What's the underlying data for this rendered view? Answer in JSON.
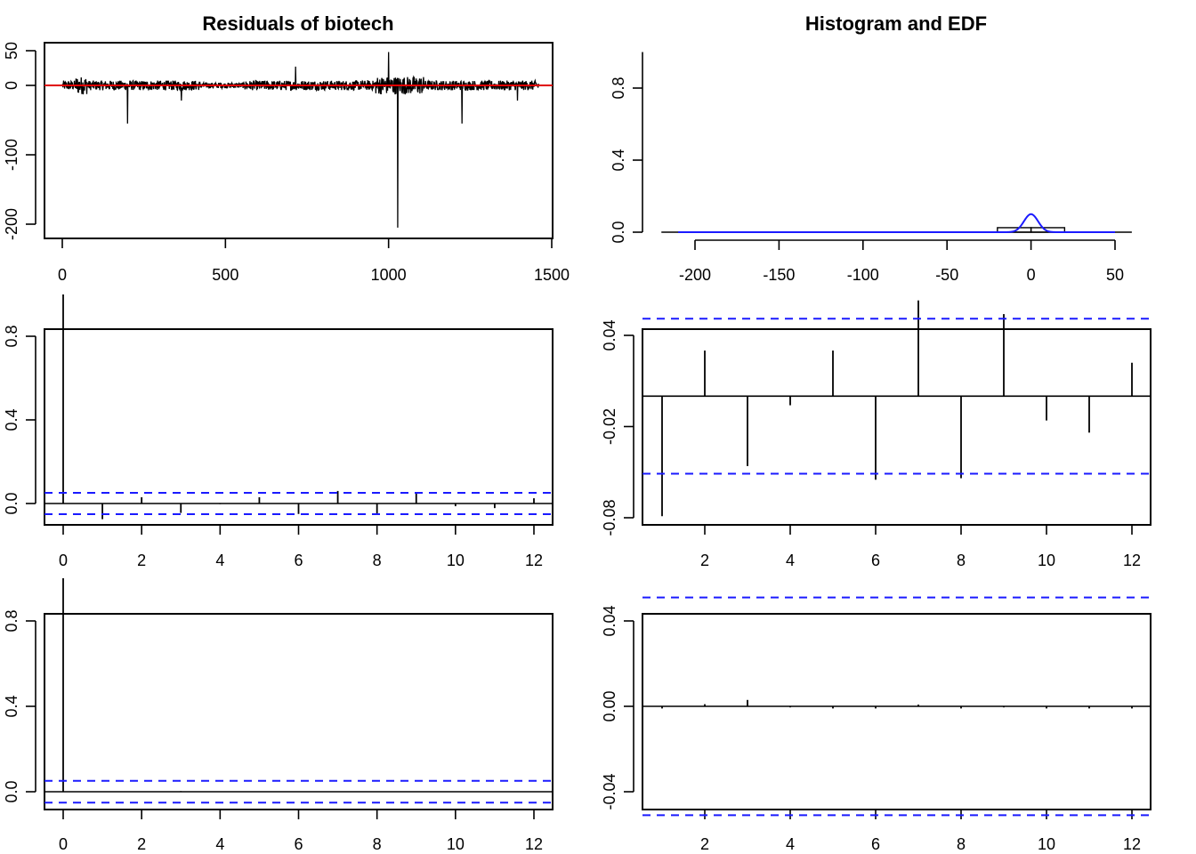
{
  "colors": {
    "axis": "#000000",
    "residual_line": "#000000",
    "zero_line": "#e00000",
    "confidence_band": "#1a1aff",
    "density": "#1a1aff"
  },
  "chart_data": [
    {
      "id": "residuals",
      "type": "line",
      "title": "Residuals of biotech",
      "xlim": [
        0,
        1500
      ],
      "ylim": [
        -200,
        50
      ],
      "xticks": [
        0,
        500,
        1000,
        1500
      ],
      "yticks": [
        -200,
        -100,
        0,
        50
      ],
      "n": 1460,
      "zero_line": 0,
      "spikes": [
        {
          "x": 200,
          "y": -55
        },
        {
          "x": 365,
          "y": -22
        },
        {
          "x": 715,
          "y": 27
        },
        {
          "x": 1000,
          "y": 48
        },
        {
          "x": 1028,
          "y": -205
        },
        {
          "x": 1225,
          "y": -55
        },
        {
          "x": 1395,
          "y": -22
        }
      ]
    },
    {
      "id": "histogram",
      "type": "bar",
      "title": "Histogram and EDF",
      "xlim": [
        -220,
        60
      ],
      "ylim": [
        0,
        1
      ],
      "xticks": [
        -200,
        -150,
        -100,
        -50,
        0,
        50
      ],
      "yticks": [
        0.0,
        0.4,
        0.8
      ],
      "ytick_labels": [
        "0.0",
        "0.4",
        "0.8"
      ],
      "bins": [
        {
          "from": -210,
          "to": -20,
          "density": 0.0
        },
        {
          "from": -20,
          "to": 0,
          "density": 0.025
        },
        {
          "from": 0,
          "to": 20,
          "density": 0.025
        },
        {
          "from": 20,
          "to": 50,
          "density": 0.0
        }
      ],
      "density_curve": {
        "mean": 0,
        "sd": 4.2,
        "peak": 0.1,
        "from": -210,
        "to": 50
      }
    },
    {
      "id": "acf_residuals",
      "type": "bar",
      "xlim": [
        -0.5,
        12.5
      ],
      "ylim": [
        -0.12,
        1.0
      ],
      "xticks": [
        0,
        2,
        4,
        6,
        8,
        10,
        12
      ],
      "yticks": [
        0.0,
        0.4,
        0.8
      ],
      "ytick_labels": [
        "0.0",
        "0.4",
        "0.8"
      ],
      "lags": [
        0,
        1,
        2,
        3,
        4,
        5,
        6,
        7,
        8,
        9,
        10,
        11,
        12
      ],
      "values": [
        1.0,
        -0.075,
        0.03,
        -0.045,
        -0.003,
        0.03,
        -0.05,
        0.06,
        -0.05,
        0.055,
        -0.013,
        -0.022,
        0.025
      ],
      "confidence": 0.051
    },
    {
      "id": "pacf_residuals",
      "type": "bar",
      "xlim": [
        0.5,
        12.5
      ],
      "ylim": [
        -0.083,
        0.063
      ],
      "xticks": [
        2,
        4,
        6,
        8,
        10,
        12
      ],
      "yticks": [
        -0.08,
        -0.02,
        0.04
      ],
      "ytick_labels": [
        "-0.08",
        "-0.02",
        "0.04"
      ],
      "lags": [
        1,
        2,
        3,
        4,
        5,
        6,
        7,
        8,
        9,
        10,
        11,
        12
      ],
      "values": [
        -0.079,
        0.03,
        -0.046,
        -0.006,
        0.03,
        -0.055,
        0.063,
        -0.054,
        0.054,
        -0.016,
        -0.024,
        0.022
      ],
      "confidence": 0.051
    },
    {
      "id": "acf_squared",
      "type": "bar",
      "xlim": [
        -0.5,
        12.5
      ],
      "ylim": [
        -0.06,
        1.0
      ],
      "xticks": [
        0,
        2,
        4,
        6,
        8,
        10,
        12
      ],
      "yticks": [
        0.0,
        0.4,
        0.8
      ],
      "ytick_labels": [
        "0.0",
        "0.4",
        "0.8"
      ],
      "lags": [
        0,
        1,
        2,
        3,
        4,
        5,
        6,
        7,
        8,
        9,
        10,
        11,
        12
      ],
      "values": [
        1.0,
        -0.002,
        0.001,
        0.003,
        -0.001,
        -0.002,
        -0.001,
        -0.001,
        -0.002,
        -0.001,
        -0.002,
        -0.002,
        -0.002
      ],
      "confidence": 0.051
    },
    {
      "id": "pacf_squared",
      "type": "bar",
      "xlim": [
        0.5,
        12.5
      ],
      "ylim": [
        -0.055,
        0.055
      ],
      "xticks": [
        2,
        4,
        6,
        8,
        10,
        12
      ],
      "yticks": [
        -0.04,
        0.0,
        0.04
      ],
      "ytick_labels": [
        "-0.04",
        "0.00",
        "0.04"
      ],
      "lags": [
        1,
        2,
        3,
        4,
        5,
        6,
        7,
        8,
        9,
        10,
        11,
        12
      ],
      "values": [
        -0.001,
        0.001,
        0.003,
        -0.0005,
        -0.001,
        -0.001,
        0.0008,
        -0.001,
        -0.0005,
        -0.001,
        -0.001,
        -0.001
      ],
      "confidence": 0.051
    }
  ]
}
